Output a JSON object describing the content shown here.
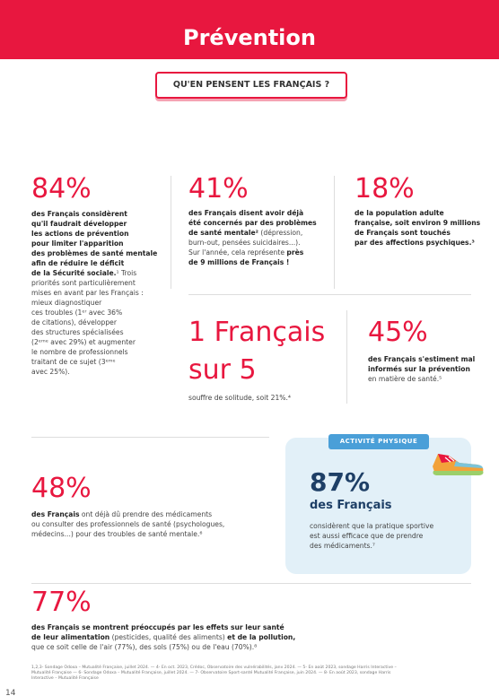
{
  "header": {
    "title": "Prévention",
    "subtitle": "QU'EN PENSENT LES FRANÇAIS ?"
  },
  "stats": [
    {
      "figure": "84%",
      "lines": [
        [
          {
            "strong": "des Français considèrent"
          }
        ],
        [
          {
            "strong": "qu'il faudrait développer"
          }
        ],
        [
          {
            "strong": "les actions de prévention"
          }
        ],
        [
          {
            "strong": "pour limiter l'apparition"
          }
        ],
        [
          {
            "strong": "des problèmes de santé mentale"
          }
        ],
        [
          {
            "strong": "afin de réduire le déficit"
          }
        ],
        [
          {
            "strong": "de la Sécurité sociale."
          },
          {
            "plain": "¹ Trois"
          }
        ],
        [
          {
            "plain": "priorités sont particulièrement"
          }
        ],
        [
          {
            "plain": "mises en avant par les Français :"
          }
        ],
        [
          {
            "plain": "mieux diagnostiquer"
          }
        ],
        [
          {
            "plain": "ces troubles (1ᵉʳ avec 36%"
          }
        ],
        [
          {
            "plain": "de citations), développer"
          }
        ],
        [
          {
            "plain": "des structures spécialisées"
          }
        ],
        [
          {
            "plain": "(2ᵉᵐᵉ avec 29%) et augmenter"
          }
        ],
        [
          {
            "plain": "le nombre de professionnels"
          }
        ],
        [
          {
            "plain": "traitant de ce sujet (3ᵉᵐᵉ"
          }
        ],
        [
          {
            "plain": "avec 25%)."
          }
        ]
      ]
    },
    {
      "figure": "41%",
      "lines": [
        [
          {
            "strong": "des Français disent avoir déjà"
          }
        ],
        [
          {
            "strong": "été concernés par des problèmes"
          }
        ],
        [
          {
            "strong": "de santé mentale²"
          },
          {
            "plain": " (dépression,"
          }
        ],
        [
          {
            "plain": "burn-out, pensées suicidaires...)."
          }
        ],
        [
          {
            "plain": "Sur l'année, cela représente "
          },
          {
            "strong": "près"
          }
        ],
        [
          {
            "strong": "de 9 millions de Français !"
          }
        ]
      ]
    },
    {
      "figure": "18%",
      "lines": [
        [
          {
            "strong": "de la population adulte"
          }
        ],
        [
          {
            "strong": "française, soit environ 9 millions"
          }
        ],
        [
          {
            "strong": "de Français sont touchés"
          }
        ],
        [
          {
            "strong": "par des affections psychiques.³"
          }
        ]
      ]
    },
    {
      "figure": "45%",
      "lines": [
        [
          {
            "strong": "des Français s'estiment mal"
          }
        ],
        [
          {
            "strong": "informés sur la prévention"
          }
        ],
        [
          {
            "plain": "en matière de santé.⁵"
          }
        ]
      ]
    },
    {
      "figure": "48%",
      "lines": [
        [
          {
            "strong": "des Français"
          },
          {
            "plain": " ont déjà dû prendre des médicaments"
          }
        ],
        [
          {
            "plain": "ou consulter des professionnels de santé (psychologues,"
          }
        ],
        [
          {
            "plain": "médecins...) pour des troubles de santé mentale.⁶"
          }
        ]
      ]
    },
    {
      "figure": "77%",
      "lines": [
        [
          {
            "strong": "des Français se montrent préoccupés par les effets sur leur santé"
          }
        ],
        [
          {
            "strong": "de leur alimentation"
          },
          {
            "plain": " (pesticides, qualité des aliments) "
          },
          {
            "strong": "et de la pollution,"
          }
        ],
        [
          {
            "plain": "que ce soit celle de l'air (77%), des sols (75%) ou de l'eau (70%).⁸"
          }
        ]
      ]
    }
  ],
  "solitude": {
    "figure_lines": [
      "1 Français",
      "sur 5"
    ],
    "lines": [
      [
        {
          "plain": "souffre de solitude, soit 21%.⁴"
        }
      ]
    ]
  },
  "activity": {
    "tag": "ACTIVITÉ PHYSIQUE",
    "figure": "87%",
    "subject": "des Français",
    "lines": [
      [
        {
          "plain": "considèrent que la pratique sportive"
        }
      ],
      [
        {
          "plain": "est aussi efficace que de prendre"
        }
      ],
      [
        {
          "plain": "des médicaments.⁷"
        }
      ]
    ]
  },
  "footnotes": [
    [
      {
        "plain": "1,2,3- Sondage Odoxa – Mutualité Française, juillet 2024. — 4- En oct. 2023, Crédoc, Observatoire des vulnérabilités, janv 2024. — 5- En août 2023, sondage Harris Interactive –"
      }
    ],
    [
      {
        "plain": "Mutualité Française — 6- Sondage Odoxa – Mutualité Française, juillet 2024. — 7- Observatoire Sport-santé Mutualité Française, juin 2024. — 8- En août 2023, sondage Harris"
      }
    ],
    [
      {
        "plain": "Interactive – Mutualité Française"
      }
    ]
  ],
  "page_number": "14"
}
